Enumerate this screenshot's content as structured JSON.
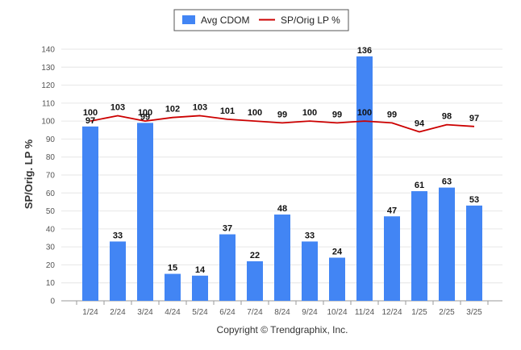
{
  "chart_data": {
    "type": "bar",
    "categories": [
      "1/24",
      "2/24",
      "3/24",
      "4/24",
      "5/24",
      "6/24",
      "7/24",
      "8/24",
      "9/24",
      "10/24",
      "11/24",
      "12/24",
      "1/25",
      "2/25",
      "3/25"
    ],
    "series": [
      {
        "name": "Avg CDOM",
        "type": "bar",
        "color": "#4285f4",
        "values": [
          97,
          33,
          99,
          15,
          14,
          37,
          22,
          48,
          33,
          24,
          136,
          47,
          61,
          63,
          53
        ]
      },
      {
        "name": "SP/Orig LP %",
        "type": "line",
        "color": "#cc0000",
        "values": [
          100,
          103,
          100,
          102,
          103,
          101,
          100,
          99,
          100,
          99,
          100,
          99,
          94,
          98,
          97
        ]
      }
    ],
    "ylabel": "SP/Orig. LP %",
    "xlabel": "",
    "ylim": [
      0,
      140
    ],
    "yticks": [
      0,
      10,
      20,
      30,
      40,
      50,
      60,
      70,
      80,
      90,
      100,
      110,
      120,
      130,
      140
    ],
    "grid": true,
    "legend_position": "top-center"
  },
  "footer": {
    "copyright": "Copyright © Trendgraphix, Inc."
  }
}
